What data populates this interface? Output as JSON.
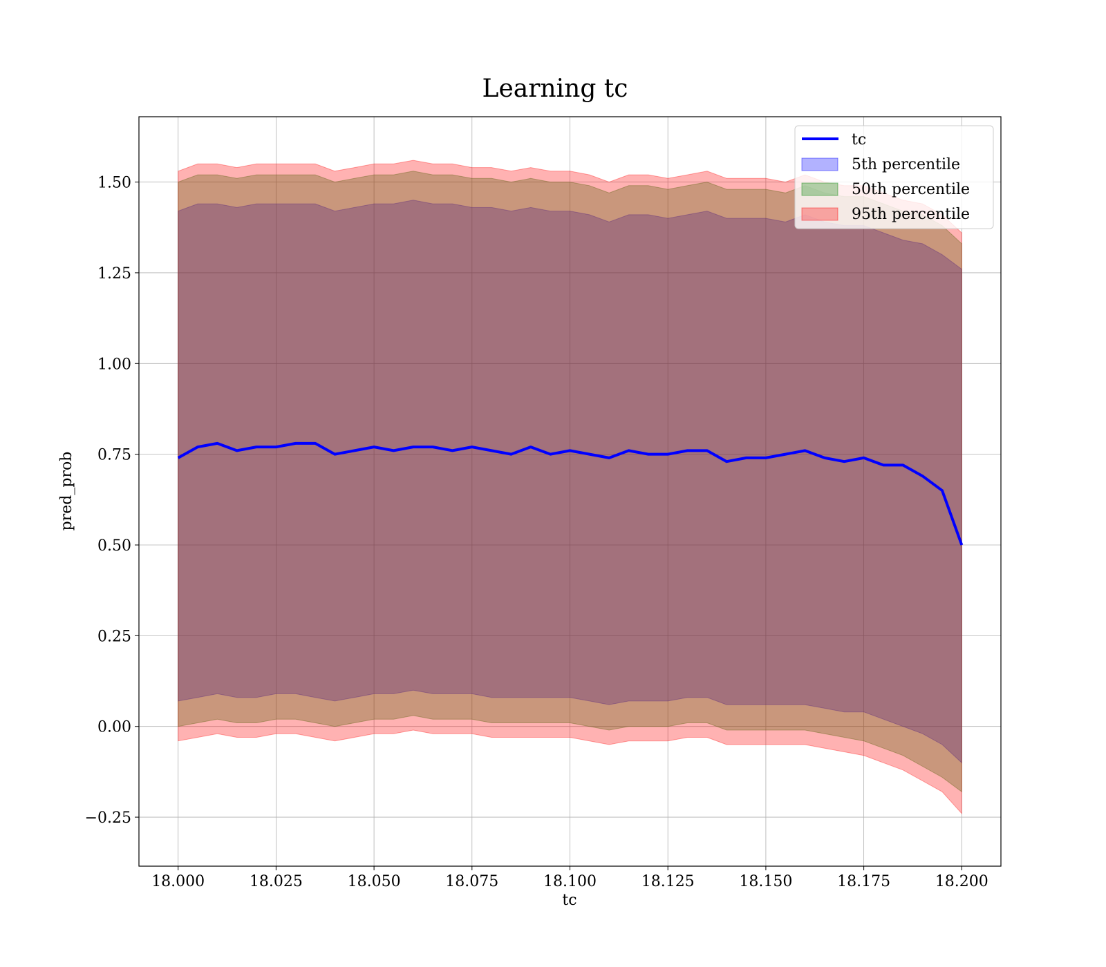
{
  "chart_data": {
    "type": "line",
    "title": "Learning tc",
    "xlabel": "tc",
    "ylabel": "pred_prob",
    "xlim": [
      17.99,
      18.21
    ],
    "ylim": [
      -0.385,
      1.68
    ],
    "grid": true,
    "legend_position": "top-right",
    "x_ticks": [
      18.0,
      18.025,
      18.05,
      18.075,
      18.1,
      18.125,
      18.15,
      18.175,
      18.2
    ],
    "x_tick_labels": [
      "18.000",
      "18.025",
      "18.050",
      "18.075",
      "18.100",
      "18.125",
      "18.150",
      "18.175",
      "18.200"
    ],
    "y_ticks": [
      -0.25,
      0.0,
      0.25,
      0.5,
      0.75,
      1.0,
      1.25,
      1.5
    ],
    "y_tick_labels": [
      "−0.25",
      "0.00",
      "0.25",
      "0.50",
      "0.75",
      "1.00",
      "1.25",
      "1.50"
    ],
    "x": [
      18.0,
      18.005,
      18.01,
      18.015,
      18.02,
      18.025,
      18.03,
      18.035,
      18.04,
      18.045,
      18.05,
      18.055,
      18.06,
      18.065,
      18.07,
      18.075,
      18.08,
      18.085,
      18.09,
      18.095,
      18.1,
      18.105,
      18.11,
      18.115,
      18.12,
      18.125,
      18.13,
      18.135,
      18.14,
      18.145,
      18.15,
      18.155,
      18.16,
      18.165,
      18.17,
      18.175,
      18.18,
      18.185,
      18.19,
      18.195,
      18.2
    ],
    "series": [
      {
        "name": "tc",
        "kind": "line",
        "color": "#0000ff",
        "values": [
          0.74,
          0.77,
          0.78,
          0.76,
          0.77,
          0.77,
          0.78,
          0.78,
          0.75,
          0.76,
          0.77,
          0.76,
          0.77,
          0.77,
          0.76,
          0.77,
          0.76,
          0.75,
          0.77,
          0.75,
          0.76,
          0.75,
          0.74,
          0.76,
          0.75,
          0.75,
          0.76,
          0.76,
          0.73,
          0.74,
          0.74,
          0.75,
          0.76,
          0.74,
          0.73,
          0.74,
          0.72,
          0.72,
          0.69,
          0.65,
          0.5
        ]
      },
      {
        "name": "5th percentile",
        "kind": "band",
        "color": "#0000ff",
        "lower": [
          0.07,
          0.08,
          0.09,
          0.08,
          0.08,
          0.09,
          0.09,
          0.08,
          0.07,
          0.08,
          0.09,
          0.09,
          0.1,
          0.09,
          0.09,
          0.09,
          0.08,
          0.08,
          0.08,
          0.08,
          0.08,
          0.07,
          0.06,
          0.07,
          0.07,
          0.07,
          0.08,
          0.08,
          0.06,
          0.06,
          0.06,
          0.06,
          0.06,
          0.05,
          0.04,
          0.04,
          0.02,
          0.0,
          -0.02,
          -0.05,
          -0.1
        ],
        "upper": [
          1.42,
          1.44,
          1.44,
          1.43,
          1.44,
          1.44,
          1.44,
          1.44,
          1.42,
          1.43,
          1.44,
          1.44,
          1.45,
          1.44,
          1.44,
          1.43,
          1.43,
          1.42,
          1.43,
          1.42,
          1.42,
          1.41,
          1.39,
          1.41,
          1.41,
          1.4,
          1.41,
          1.42,
          1.4,
          1.4,
          1.4,
          1.39,
          1.41,
          1.39,
          1.38,
          1.38,
          1.36,
          1.34,
          1.33,
          1.3,
          1.26
        ]
      },
      {
        "name": "50th percentile",
        "kind": "band",
        "color": "#008000",
        "lower": [
          0.0,
          0.01,
          0.02,
          0.01,
          0.01,
          0.02,
          0.02,
          0.01,
          0.0,
          0.01,
          0.02,
          0.02,
          0.03,
          0.02,
          0.02,
          0.02,
          0.01,
          0.01,
          0.01,
          0.01,
          0.01,
          0.0,
          -0.01,
          0.0,
          0.0,
          0.0,
          0.01,
          0.01,
          -0.01,
          -0.01,
          -0.01,
          -0.01,
          -0.01,
          -0.02,
          -0.03,
          -0.04,
          -0.06,
          -0.08,
          -0.11,
          -0.14,
          -0.18
        ],
        "upper": [
          1.5,
          1.52,
          1.52,
          1.51,
          1.52,
          1.52,
          1.52,
          1.52,
          1.5,
          1.51,
          1.52,
          1.52,
          1.53,
          1.52,
          1.52,
          1.51,
          1.51,
          1.5,
          1.51,
          1.5,
          1.5,
          1.49,
          1.47,
          1.49,
          1.49,
          1.48,
          1.49,
          1.5,
          1.48,
          1.48,
          1.48,
          1.47,
          1.49,
          1.47,
          1.46,
          1.46,
          1.44,
          1.42,
          1.41,
          1.38,
          1.33
        ]
      },
      {
        "name": "95th percentile",
        "kind": "band",
        "color": "#ff0000",
        "lower": [
          -0.04,
          -0.03,
          -0.02,
          -0.03,
          -0.03,
          -0.02,
          -0.02,
          -0.03,
          -0.04,
          -0.03,
          -0.02,
          -0.02,
          -0.01,
          -0.02,
          -0.02,
          -0.02,
          -0.03,
          -0.03,
          -0.03,
          -0.03,
          -0.03,
          -0.04,
          -0.05,
          -0.04,
          -0.04,
          -0.04,
          -0.03,
          -0.03,
          -0.05,
          -0.05,
          -0.05,
          -0.05,
          -0.05,
          -0.06,
          -0.07,
          -0.08,
          -0.1,
          -0.12,
          -0.15,
          -0.18,
          -0.24
        ],
        "upper": [
          1.53,
          1.55,
          1.55,
          1.54,
          1.55,
          1.55,
          1.55,
          1.55,
          1.53,
          1.54,
          1.55,
          1.55,
          1.56,
          1.55,
          1.55,
          1.54,
          1.54,
          1.53,
          1.54,
          1.53,
          1.53,
          1.52,
          1.5,
          1.52,
          1.52,
          1.51,
          1.52,
          1.53,
          1.51,
          1.51,
          1.51,
          1.5,
          1.52,
          1.5,
          1.49,
          1.49,
          1.47,
          1.45,
          1.44,
          1.41,
          1.36
        ]
      }
    ]
  }
}
